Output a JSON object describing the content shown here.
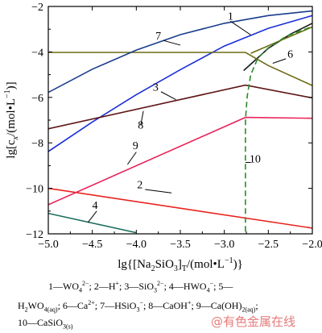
{
  "chart_data": {
    "type": "line",
    "title": "",
    "xlabel": "lg{[Na2SiO3]T/(mol•L−1)}",
    "ylabel": "lg[cx/(mol•L−1)]",
    "xlim": [
      -5.0,
      -2.0
    ],
    "ylim": [
      -12,
      -2
    ],
    "xticks": [
      "-5.0",
      "-4.5",
      "-4.0",
      "-3.5",
      "-3.0",
      "-2.5",
      "-2.0"
    ],
    "yticks": [
      "-2",
      "-4",
      "-6",
      "-8",
      "-10",
      "-12"
    ],
    "series": [
      {
        "name": "1",
        "color": "#1a1a1a",
        "dashed": false,
        "points": [
          [
            -2.78,
            -4.82
          ],
          [
            -2.5,
            -3.84
          ],
          [
            -2.25,
            -3.22
          ],
          [
            -2.0,
            -2.74
          ]
        ]
      },
      {
        "name": "2",
        "color": "#e8231f",
        "dashed": false,
        "points": [
          [
            -5.0,
            -10.0
          ],
          [
            -2.0,
            -11.75
          ]
        ]
      },
      {
        "name": "3",
        "color": "#1b2fd6",
        "dashed": false,
        "points": [
          [
            -5.0,
            -8.38
          ],
          [
            -4.5,
            -7.08
          ],
          [
            -4.0,
            -5.88
          ],
          [
            -3.5,
            -4.78
          ],
          [
            -3.0,
            -3.74
          ],
          [
            -2.5,
            -2.96
          ],
          [
            -2.0,
            -2.4
          ]
        ]
      },
      {
        "name": "4",
        "color": "#1b6e5e",
        "dashed": false,
        "points": [
          [
            -5.0,
            -11.1
          ],
          [
            -4.0,
            -11.95
          ]
        ]
      },
      {
        "name": "6",
        "color": "#6b6b13",
        "dashed": false,
        "points": [
          [
            -5.0,
            -4.02
          ],
          [
            -2.76,
            -4.02
          ],
          [
            -2.5,
            -4.6
          ],
          [
            -2.0,
            -5.48
          ]
        ]
      },
      {
        "name": "6",
        "color": "#6b6b13",
        "dashed": false,
        "points": [
          [
            -2.7,
            -4.06
          ],
          [
            -2.35,
            -3.48
          ],
          [
            -2.0,
            -2.9
          ]
        ]
      },
      {
        "name": "7",
        "color": "#1a3c8c",
        "dashed": false,
        "points": [
          [
            -5.0,
            -5.78
          ],
          [
            -4.5,
            -4.76
          ],
          [
            -4.0,
            -3.92
          ],
          [
            -3.5,
            -3.24
          ],
          [
            -3.0,
            -2.74
          ],
          [
            -2.5,
            -2.4
          ],
          [
            -2.0,
            -2.2
          ]
        ]
      },
      {
        "name": "8",
        "color": "#5e1414",
        "dashed": false,
        "points": [
          [
            -5.0,
            -7.38
          ],
          [
            -2.76,
            -5.46
          ],
          [
            -2.0,
            -6.02
          ]
        ]
      },
      {
        "name": "9",
        "color": "#e8245a",
        "dashed": false,
        "points": [
          [
            -5.0,
            -10.72
          ],
          [
            -2.76,
            -6.88
          ],
          [
            -2.0,
            -6.92
          ]
        ]
      },
      {
        "name": "10",
        "color": "#2a8a2a",
        "dashed": true,
        "points": [
          [
            -2.76,
            -11.9
          ],
          [
            -2.76,
            -7.0
          ],
          [
            -2.74,
            -5.95
          ],
          [
            -2.7,
            -5.0
          ],
          [
            -2.62,
            -4.28
          ],
          [
            -2.5,
            -3.82
          ],
          [
            -2.3,
            -3.32
          ],
          [
            -2.0,
            -2.88
          ]
        ]
      }
    ],
    "labels": [
      {
        "text": "1",
        "x": -2.93,
        "y": -2.58
      },
      {
        "text": "2",
        "x": -3.96,
        "y": -10.0
      },
      {
        "text": "3",
        "x": -3.78,
        "y": -5.7
      },
      {
        "text": "4",
        "x": -4.47,
        "y": -10.9
      },
      {
        "text": "6",
        "x": -2.25,
        "y": -4.26
      },
      {
        "text": "7",
        "x": -3.75,
        "y": -3.46
      },
      {
        "text": "8",
        "x": -3.95,
        "y": -7.38
      },
      {
        "text": "9",
        "x": -4.01,
        "y": -8.28
      },
      {
        "text": "10",
        "x": -2.65,
        "y": -8.86
      }
    ],
    "leaders": [
      {
        "from": [
          -2.93,
          -2.65
        ],
        "to": [
          -2.7,
          -3.25
        ]
      },
      {
        "from": [
          -3.9,
          -10.05
        ],
        "to": [
          -3.6,
          -10.2
        ]
      },
      {
        "from": [
          -3.72,
          -5.75
        ],
        "to": [
          -3.55,
          -6.1
        ]
      },
      {
        "from": [
          -4.45,
          -11.0
        ],
        "to": [
          -4.55,
          -11.5
        ]
      },
      {
        "from": [
          -2.3,
          -4.3
        ],
        "to": [
          -2.45,
          -4.5
        ]
      },
      {
        "from": [
          -3.69,
          -3.5
        ],
        "to": [
          -3.5,
          -3.7
        ]
      },
      {
        "from": [
          -3.95,
          -7.22
        ],
        "to": [
          -3.92,
          -6.6
        ]
      },
      {
        "from": [
          -4.0,
          -8.4
        ],
        "to": [
          -4.1,
          -8.95
        ]
      },
      {
        "from": [
          -2.7,
          -8.86
        ],
        "to": [
          -2.76,
          -8.86
        ]
      }
    ]
  },
  "caption": {
    "line1": "1—WO4 2−; 2—H+; 3—SiO3 2−; 4—HWO4 −; 5—",
    "line2": "H2WO4(aq); 6—Ca2+; 7—HSiO3 −; 8—CaOH+; 9—Ca(OH)2(aq);",
    "line3": "10—CaSiO3(s)"
  },
  "watermark": "@有色金属在线"
}
